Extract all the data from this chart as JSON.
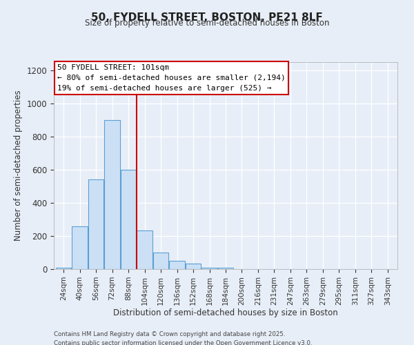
{
  "title": "50, FYDELL STREET, BOSTON, PE21 8LF",
  "subtitle": "Size of property relative to semi-detached houses in Boston",
  "xlabel": "Distribution of semi-detached houses by size in Boston",
  "ylabel": "Number of semi-detached properties",
  "bar_labels": [
    "24sqm",
    "40sqm",
    "56sqm",
    "72sqm",
    "88sqm",
    "104sqm",
    "120sqm",
    "136sqm",
    "152sqm",
    "168sqm",
    "184sqm",
    "200sqm",
    "216sqm",
    "231sqm",
    "247sqm",
    "263sqm",
    "279sqm",
    "295sqm",
    "311sqm",
    "327sqm",
    "343sqm"
  ],
  "bar_values": [
    10,
    260,
    540,
    900,
    600,
    235,
    100,
    48,
    35,
    10,
    10,
    0,
    0,
    0,
    0,
    0,
    0,
    0,
    0,
    0,
    0
  ],
  "bar_color": "#cce0f5",
  "bar_edgecolor": "#5a9fd4",
  "vline_color": "#cc0000",
  "annotation_title": "50 FYDELL STREET: 101sqm",
  "annotation_line1": "← 80% of semi-detached houses are smaller (2,194)",
  "annotation_line2": "19% of semi-detached houses are larger (525) →",
  "annotation_box_color": "#ffffff",
  "annotation_box_edgecolor": "#cc0000",
  "ylim": [
    0,
    1250
  ],
  "background_color": "#e8eef7",
  "grid_color": "#ffffff",
  "footer1": "Contains HM Land Registry data © Crown copyright and database right 2025.",
  "footer2": "Contains public sector information licensed under the Open Government Licence v3.0."
}
